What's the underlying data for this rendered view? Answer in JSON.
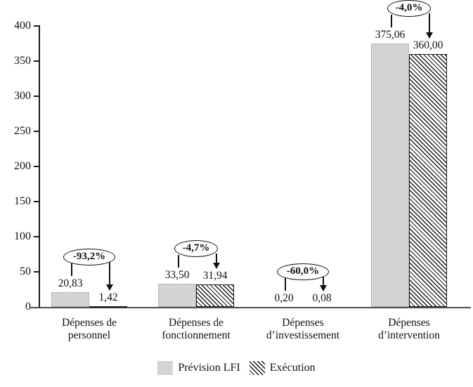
{
  "chart_data": {
    "type": "bar",
    "title": "",
    "xlabel": "",
    "ylabel": "",
    "ylim": [
      0,
      400
    ],
    "yticks": [
      0,
      50,
      100,
      150,
      200,
      250,
      300,
      350,
      400
    ],
    "grid": false,
    "legend_position": "bottom",
    "categories": [
      [
        "Dépenses de",
        "personnel"
      ],
      [
        "Dépenses de",
        "fonctionnement"
      ],
      [
        "Dépenses",
        "d’investissement"
      ],
      [
        "Dépenses",
        "d’intervention"
      ]
    ],
    "series": [
      {
        "name": "Prévision LFI",
        "values": [
          20.83,
          33.5,
          0.2,
          375.06
        ],
        "labels": [
          "20,83",
          "33,50",
          "0,20",
          "375,06"
        ]
      },
      {
        "name": "Exécution",
        "values": [
          1.42,
          31.94,
          0.08,
          360.0
        ],
        "labels": [
          "1,42",
          "31,94",
          "0,08",
          "360,00"
        ]
      }
    ],
    "annotations": [
      "-93,2%",
      "-4,7%",
      "-60,0%",
      "-4,0%"
    ]
  },
  "colors": {
    "prevision_fill": "#d4d4d4",
    "prevision_border": "#b6b6b6",
    "hatch_line": "#1a1a1a",
    "axis": "#1a1a1a",
    "baseline": "#4d4d4d",
    "text": "#111111"
  }
}
